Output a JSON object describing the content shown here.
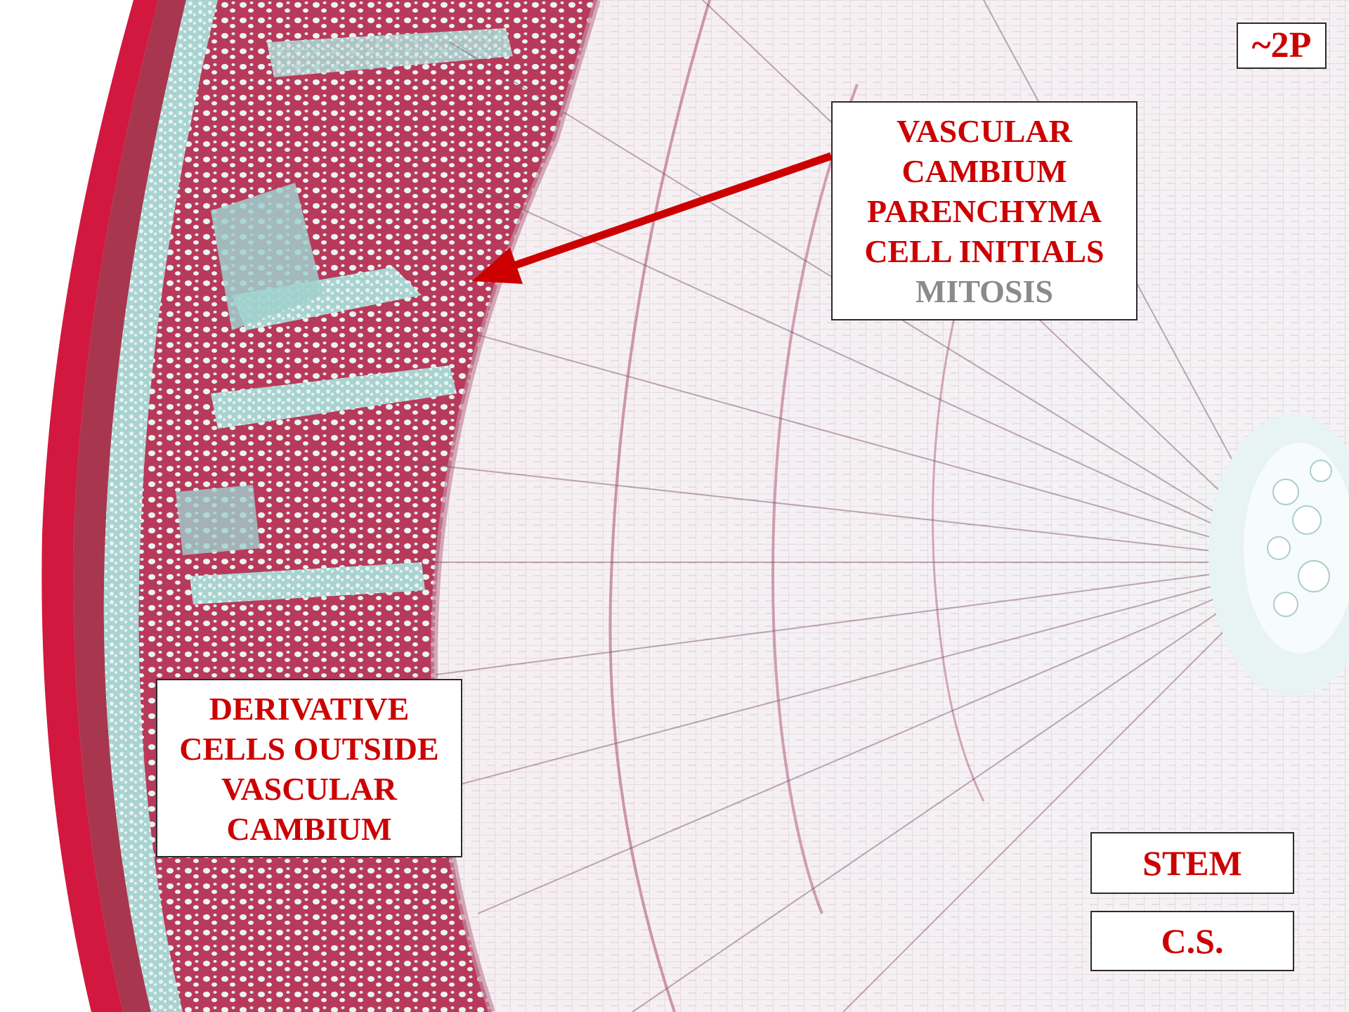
{
  "image": {
    "subject": "stem-cross-section-micrograph",
    "colors": {
      "bark_red": "#d2183f",
      "phloem_magenta": "#b83a5a",
      "ray_teal": "#8fc9c6",
      "xylem_background": "#fbf6f7",
      "cell_wall": "#6a4a58",
      "annotation_red": "#cc0000",
      "annotation_grey": "#8a8a8a"
    }
  },
  "labels": {
    "plate_id": "~2P",
    "cambium": {
      "lines": [
        "VASCULAR",
        "CAMBIUM",
        "PARENCHYMA",
        "CELL INITIALS"
      ],
      "extra": "MITOSIS"
    },
    "derivative": {
      "lines": [
        "DERIVATIVE",
        "CELLS OUTSIDE",
        "VASCULAR",
        "CAMBIUM"
      ]
    },
    "stem": "STEM",
    "cs": "C.S."
  },
  "icons": {
    "pointer": "arrow-icon"
  }
}
